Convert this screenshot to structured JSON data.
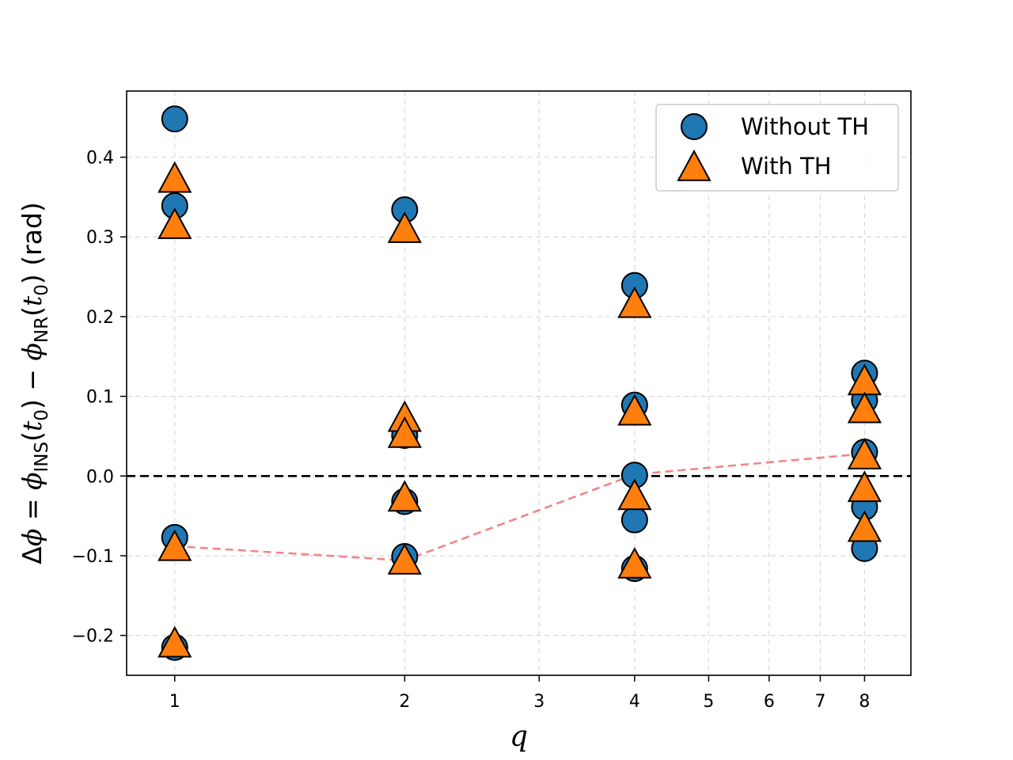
{
  "chart_data": {
    "type": "scatter",
    "title": "",
    "xlabel": "q",
    "xscale": "log",
    "xlim": [
      0.865,
      9.2
    ],
    "ylim": [
      -0.25,
      0.483
    ],
    "xticks": [
      1,
      2,
      3,
      4,
      5,
      6,
      7,
      8
    ],
    "xtick_labels": [
      "1",
      "2",
      "3",
      "4",
      "5",
      "6",
      "7",
      "8"
    ],
    "yticks": [
      -0.2,
      -0.1,
      0.0,
      0.1,
      0.2,
      0.3,
      0.4
    ],
    "ytick_labels": [
      "−0.2",
      "−0.1",
      "0.0",
      "0.1",
      "0.2",
      "0.3",
      "0.4"
    ],
    "ylabel": {
      "p1": "Δ",
      "p2": "ϕ",
      "p3": " = ",
      "p4": "ϕ",
      "p5": "INS",
      "p6": "(",
      "p7": "t",
      "p8": "0",
      "p9": ") − ",
      "p10": "ϕ",
      "p11": "NR",
      "p12": "(",
      "p13": "t",
      "p14": "0",
      "p15": ") (rad)"
    },
    "grid": true,
    "legend_position": "top-right",
    "zero_line": true,
    "colors": {
      "without": "#1f77b4",
      "with": "#ff7f0e",
      "trend": "#f08080",
      "edge": "#000000"
    },
    "series": [
      {
        "name": "Without TH",
        "marker": "circle",
        "points": [
          [
            1,
            0.448
          ],
          [
            1,
            0.339
          ],
          [
            1,
            -0.077
          ],
          [
            1,
            -0.215
          ],
          [
            2,
            0.334
          ],
          [
            2,
            0.051
          ],
          [
            2,
            -0.032
          ],
          [
            2,
            -0.101
          ],
          [
            4,
            0.239
          ],
          [
            4,
            0.089
          ],
          [
            4,
            0.001
          ],
          [
            4,
            -0.055
          ],
          [
            4,
            -0.116
          ],
          [
            8,
            0.129
          ],
          [
            8,
            0.095
          ],
          [
            8,
            0.03
          ],
          [
            8,
            -0.039
          ],
          [
            8,
            -0.091
          ]
        ]
      },
      {
        "name": "With TH",
        "marker": "triangle",
        "points": [
          [
            1,
            0.372
          ],
          [
            1,
            0.314
          ],
          [
            1,
            -0.09
          ],
          [
            1,
            -0.211
          ],
          [
            2,
            0.309
          ],
          [
            2,
            0.072
          ],
          [
            2,
            0.052
          ],
          [
            2,
            -0.028
          ],
          [
            2,
            -0.107
          ],
          [
            4,
            0.215
          ],
          [
            4,
            0.08
          ],
          [
            4,
            -0.026
          ],
          [
            4,
            -0.112
          ],
          [
            8,
            0.118
          ],
          [
            8,
            0.083
          ],
          [
            8,
            0.025
          ],
          [
            8,
            -0.016
          ],
          [
            8,
            -0.066
          ]
        ]
      },
      {
        "name": "trend",
        "style": "dashed-line",
        "points": [
          [
            1,
            -0.088
          ],
          [
            2,
            -0.106
          ],
          [
            4,
            0.002
          ],
          [
            8,
            0.028
          ]
        ]
      }
    ]
  }
}
